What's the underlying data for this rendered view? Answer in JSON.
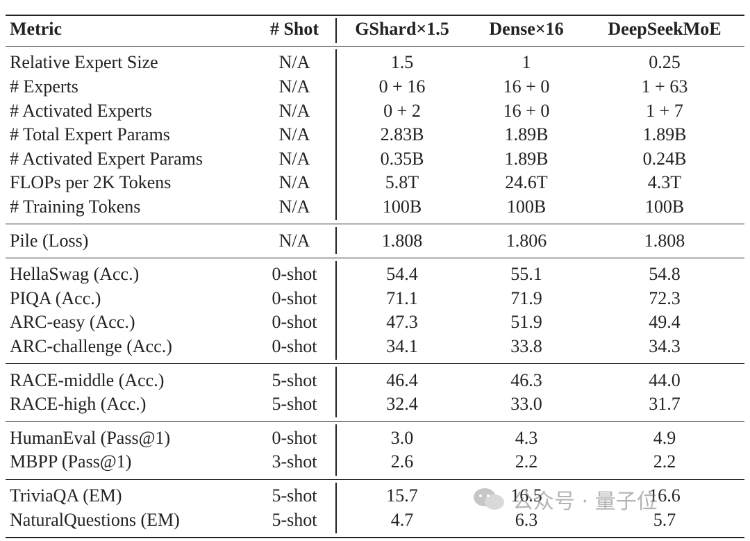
{
  "header": [
    "Metric",
    "# Shot",
    "GShard×1.5",
    "Dense×16",
    "DeepSeekMoE"
  ],
  "groups": [
    {
      "rows": [
        [
          "Relative Expert Size",
          "N/A",
          "1.5",
          "1",
          "0.25"
        ],
        [
          "# Experts",
          "N/A",
          "0 + 16",
          "16 + 0",
          "1 + 63"
        ],
        [
          "# Activated Experts",
          "N/A",
          "0 + 2",
          "16 + 0",
          "1 + 7"
        ],
        [
          "# Total Expert Params",
          "N/A",
          "2.83B",
          "1.89B",
          "1.89B"
        ],
        [
          "# Activated Expert Params",
          "N/A",
          "0.35B",
          "1.89B",
          "0.24B"
        ],
        [
          "FLOPs per 2K Tokens",
          "N/A",
          "5.8T",
          "24.6T",
          "4.3T"
        ],
        [
          "# Training Tokens",
          "N/A",
          "100B",
          "100B",
          "100B"
        ]
      ]
    },
    {
      "rows": [
        [
          "Pile (Loss)",
          "N/A",
          "1.808",
          "1.806",
          "1.808"
        ]
      ]
    },
    {
      "rows": [
        [
          "HellaSwag (Acc.)",
          "0-shot",
          "54.4",
          "55.1",
          "54.8"
        ],
        [
          "PIQA (Acc.)",
          "0-shot",
          "71.1",
          "71.9",
          "72.3"
        ],
        [
          "ARC-easy (Acc.)",
          "0-shot",
          "47.3",
          "51.9",
          "49.4"
        ],
        [
          "ARC-challenge (Acc.)",
          "0-shot",
          "34.1",
          "33.8",
          "34.3"
        ]
      ]
    },
    {
      "rows": [
        [
          "RACE-middle (Acc.)",
          "5-shot",
          "46.4",
          "46.3",
          "44.0"
        ],
        [
          "RACE-high (Acc.)",
          "5-shot",
          "32.4",
          "33.0",
          "31.7"
        ]
      ]
    },
    {
      "rows": [
        [
          "HumanEval (Pass@1)",
          "0-shot",
          "3.0",
          "4.3",
          "4.9"
        ],
        [
          "MBPP (Pass@1)",
          "3-shot",
          "2.6",
          "2.2",
          "2.2"
        ]
      ]
    },
    {
      "rows": [
        [
          "TriviaQA (EM)",
          "5-shot",
          "15.7",
          "16.5",
          "16.6"
        ],
        [
          "NaturalQuestions (EM)",
          "5-shot",
          "4.7",
          "6.3",
          "5.7"
        ]
      ]
    }
  ],
  "watermark": "公众号 · 量子位"
}
